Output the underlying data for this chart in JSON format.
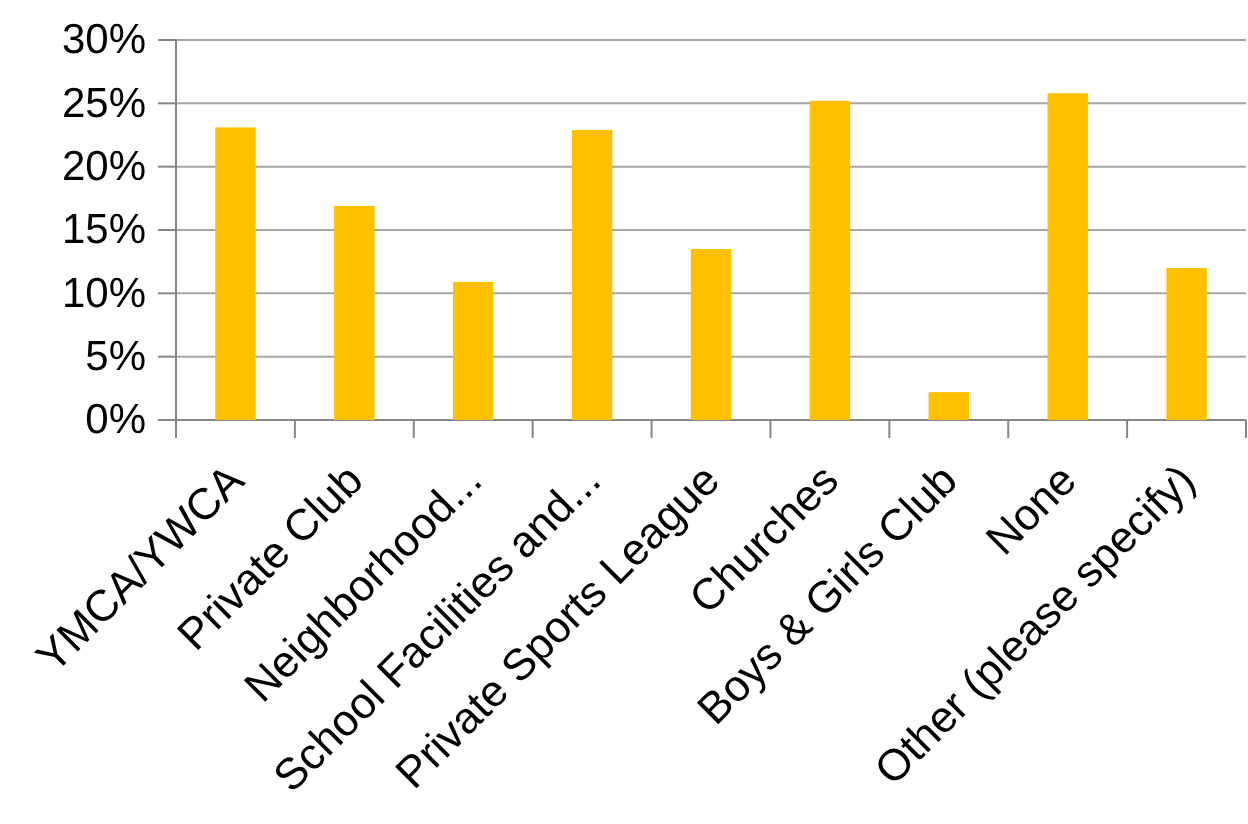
{
  "chart_data": {
    "type": "bar",
    "categories": [
      "YMCA/YWCA",
      "Private Club",
      "Neighborhood...",
      "School Facilities and...",
      "Private Sports League",
      "Churches",
      "Boys & Girls Club",
      "None",
      "Other (please specify)"
    ],
    "values": [
      23.1,
      16.9,
      10.9,
      22.9,
      13.5,
      25.2,
      2.2,
      25.8,
      12.0
    ],
    "color": "#ffc000",
    "ylim": [
      0,
      30
    ],
    "yticks": [
      {
        "value": 0,
        "label": "0%"
      },
      {
        "value": 5,
        "label": "5%"
      },
      {
        "value": 10,
        "label": "10%"
      },
      {
        "value": 15,
        "label": "15%"
      },
      {
        "value": 20,
        "label": "20%"
      },
      {
        "value": 25,
        "label": "25%"
      },
      {
        "value": 30,
        "label": "30%"
      }
    ],
    "grid": "y"
  }
}
